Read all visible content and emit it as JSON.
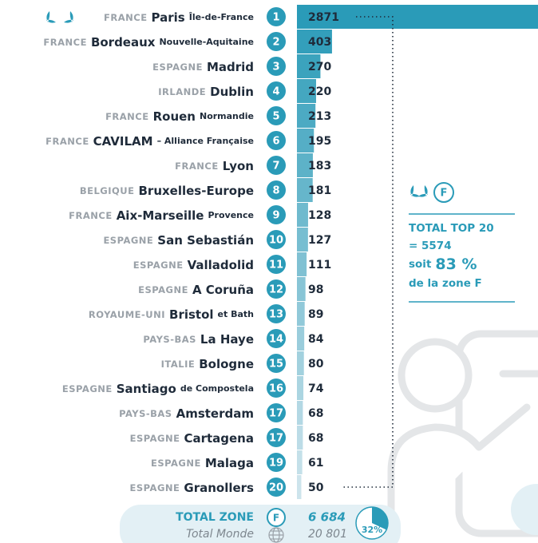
{
  "chart_data": {
    "type": "bar",
    "countries": [
      "FRANCE",
      "FRANCE",
      "ESPAGNE",
      "IRLANDE",
      "FRANCE",
      "FRANCE",
      "FRANCE",
      "BELGIQUE",
      "FRANCE",
      "ESPAGNE",
      "ESPAGNE",
      "ESPAGNE",
      "ROYAUME-UNI",
      "PAYS-BAS",
      "ITALIE",
      "ESPAGNE",
      "PAYS-BAS",
      "ESPAGNE",
      "ESPAGNE",
      "ESPAGNE"
    ],
    "categories": [
      "Paris",
      "Bordeaux",
      "Madrid",
      "Dublin",
      "Rouen",
      "CAVILAM",
      "Lyon",
      "Bruxelles-Europe",
      "Aix-Marseille",
      "San Sebastián",
      "Valladolid",
      "A Coruña",
      "Bristol",
      "La Haye",
      "Bologne",
      "Santiago",
      "Amsterdam",
      "Cartagena",
      "Malaga",
      "Granollers"
    ],
    "regions": [
      "Île-de-France",
      "Nouvelle-Aquitaine",
      null,
      null,
      "Normandie",
      "– Alliance Française",
      null,
      null,
      "Provence",
      null,
      null,
      null,
      "et Bath",
      null,
      null,
      "de Compostela",
      null,
      null,
      null,
      null
    ],
    "ranks": [
      1,
      2,
      3,
      4,
      5,
      6,
      7,
      8,
      9,
      10,
      11,
      12,
      13,
      14,
      15,
      16,
      17,
      17,
      19,
      20
    ],
    "values": [
      2871,
      403,
      270,
      220,
      213,
      195,
      183,
      181,
      128,
      127,
      111,
      98,
      89,
      84,
      80,
      74,
      68,
      68,
      61,
      50
    ],
    "color": "#2a9bb8",
    "total": {
      "label": "TOTAL ZONE",
      "zone": "F",
      "value": 6684,
      "value_label": "6 684"
    },
    "world": {
      "label": "Total Monde",
      "value": 20801,
      "value_label": "20 801"
    },
    "world_share": {
      "value": 32,
      "label": "32%"
    },
    "summary": {
      "zone": "F",
      "title": "TOTAL TOP 20",
      "value": 5574,
      "value_label": "= 5574",
      "share_prefix": "soit",
      "share": 83,
      "share_label": "83 %",
      "share_suffix": "de la zone F"
    }
  }
}
